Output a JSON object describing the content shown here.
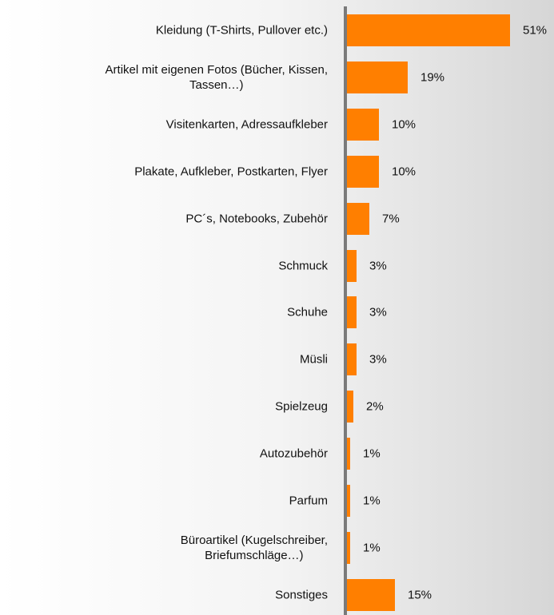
{
  "chart_data": {
    "type": "bar",
    "orientation": "horizontal",
    "color": "#ff7f00",
    "categories": [
      "Kleidung (T-Shirts, Pullover etc.)",
      "Artikel mit eigenen Fotos (Bücher, Kissen,\nTassen…)",
      "Visitenkarten, Adressaufkleber",
      "Plakate, Aufkleber, Postkarten, Flyer",
      "PC´s, Notebooks, Zubehör",
      "Schmuck",
      "Schuhe",
      "Müsli",
      "Spielzeug",
      "Autozubehör",
      "Parfum",
      "Büroartikel (Kugelschreiber,\nBriefumschläge…)",
      "Sonstiges"
    ],
    "values": [
      51,
      19,
      10,
      10,
      7,
      3,
      3,
      3,
      2,
      1,
      1,
      1,
      15
    ],
    "value_labels": [
      "51%",
      "19%",
      "10%",
      "10%",
      "7%",
      "3%",
      "3%",
      "3%",
      "2%",
      "1%",
      "1%",
      "1%",
      "15%"
    ]
  }
}
